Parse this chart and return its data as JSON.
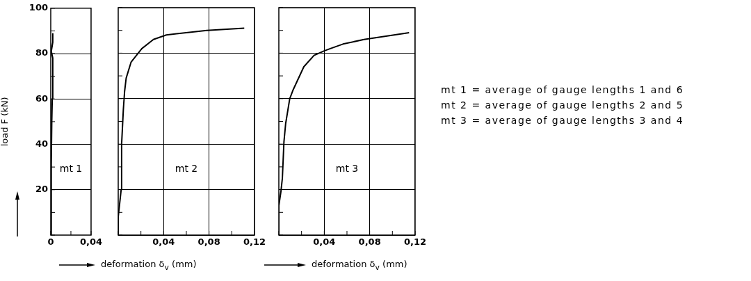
{
  "chart_data": [
    {
      "type": "line",
      "ylabel": "load F (kN)",
      "annotations": [
        "mt 1"
      ],
      "grid": "y",
      "xlim": [
        0,
        0.04
      ],
      "ylim": [
        0,
        100
      ],
      "xticks": [
        0,
        {
          "value": 0.02,
          "label": null
        },
        {
          "value": 0.04,
          "label": "0,04"
        }
      ],
      "yticks": [
        {
          "value": 0,
          "label": null
        },
        {
          "value": 10,
          "label": null
        },
        20,
        {
          "value": 30,
          "label": null
        },
        40,
        {
          "value": 50,
          "label": null
        },
        60,
        {
          "value": 70,
          "label": null
        },
        80,
        {
          "value": 90,
          "label": null
        },
        100
      ],
      "series": [
        {
          "color": "#000000",
          "x": [
            0,
            0.0005,
            0.001,
            0.0015,
            0.002,
            0.0005,
            0.002,
            0.002
          ],
          "values": [
            0,
            31,
            50,
            60,
            78,
            81,
            85,
            89
          ]
        }
      ]
    },
    {
      "type": "line",
      "xlabel": "deformation δ$_{v}$ (mm)",
      "annotations": [
        "mt 2"
      ],
      "grid": true,
      "tick_labels": "x",
      "xlim": [
        0,
        0.12
      ],
      "ylim": [
        0,
        100
      ],
      "xticks": [
        {
          "value": 0,
          "label": null
        },
        {
          "value": 0.02,
          "label": null
        },
        {
          "value": 0.04,
          "label": "0,04"
        },
        {
          "value": 0.06,
          "label": null
        },
        {
          "value": 0.08,
          "label": "0,08"
        },
        {
          "value": 0.1,
          "label": null
        },
        {
          "value": 0.12,
          "label": "0,12"
        }
      ],
      "yticks": [
        0,
        {
          "value": 10,
          "label": null
        },
        20,
        {
          "value": 30,
          "label": null
        },
        40,
        {
          "value": 50,
          "label": null
        },
        60,
        {
          "value": 70,
          "label": null
        },
        80,
        {
          "value": 90,
          "label": null
        },
        100
      ],
      "series": [
        {
          "color": "#000000",
          "x": [
            0,
            0,
            0.0026,
            0.003,
            0.0045,
            0.0056,
            0.007,
            0.0113,
            0.0208,
            0.031,
            0.0424,
            0.078,
            0.111
          ],
          "values": [
            0,
            8,
            20,
            40,
            55,
            63,
            69,
            76,
            82,
            86,
            88,
            90,
            91
          ]
        }
      ]
    },
    {
      "type": "line",
      "xlabel": "deformation δ$_{v}$ (mm)",
      "annotations": [
        "mt 3"
      ],
      "grid": true,
      "tick_labels": "x",
      "xlim": [
        0,
        0.12
      ],
      "ylim": [
        0,
        100
      ],
      "xticks": [
        {
          "value": 0,
          "label": null
        },
        {
          "value": 0.02,
          "label": null
        },
        {
          "value": 0.04,
          "label": "0,04"
        },
        {
          "value": 0.06,
          "label": null
        },
        {
          "value": 0.08,
          "label": "0,08"
        },
        {
          "value": 0.1,
          "label": null
        },
        {
          "value": 0.12,
          "label": "0,12"
        }
      ],
      "yticks": [
        0,
        {
          "value": 10,
          "label": null
        },
        20,
        {
          "value": 30,
          "label": null
        },
        40,
        {
          "value": 50,
          "label": null
        },
        60,
        {
          "value": 70,
          "label": null
        },
        80,
        {
          "value": 90,
          "label": null
        },
        100
      ],
      "series": [
        {
          "color": "#000000",
          "x": [
            0,
            0,
            0.0018,
            0.0031,
            0.0045,
            0.006,
            0.0096,
            0.0127,
            0.022,
            0.031,
            0.04,
            0.0453,
            0.0565,
            0.075,
            0.1147
          ],
          "values": [
            0,
            13,
            19,
            25,
            41,
            49,
            60,
            64,
            74,
            79,
            81,
            82,
            84,
            86,
            89
          ]
        }
      ]
    },
    {
      "type": "other",
      "annotations": [
        "mt 1 = average of gauge lengths 1 and 6",
        "mt 2 = average of gauge lengths 2 and 5",
        "mt 3 = average of gauge lengths 3 and 4"
      ]
    }
  ]
}
